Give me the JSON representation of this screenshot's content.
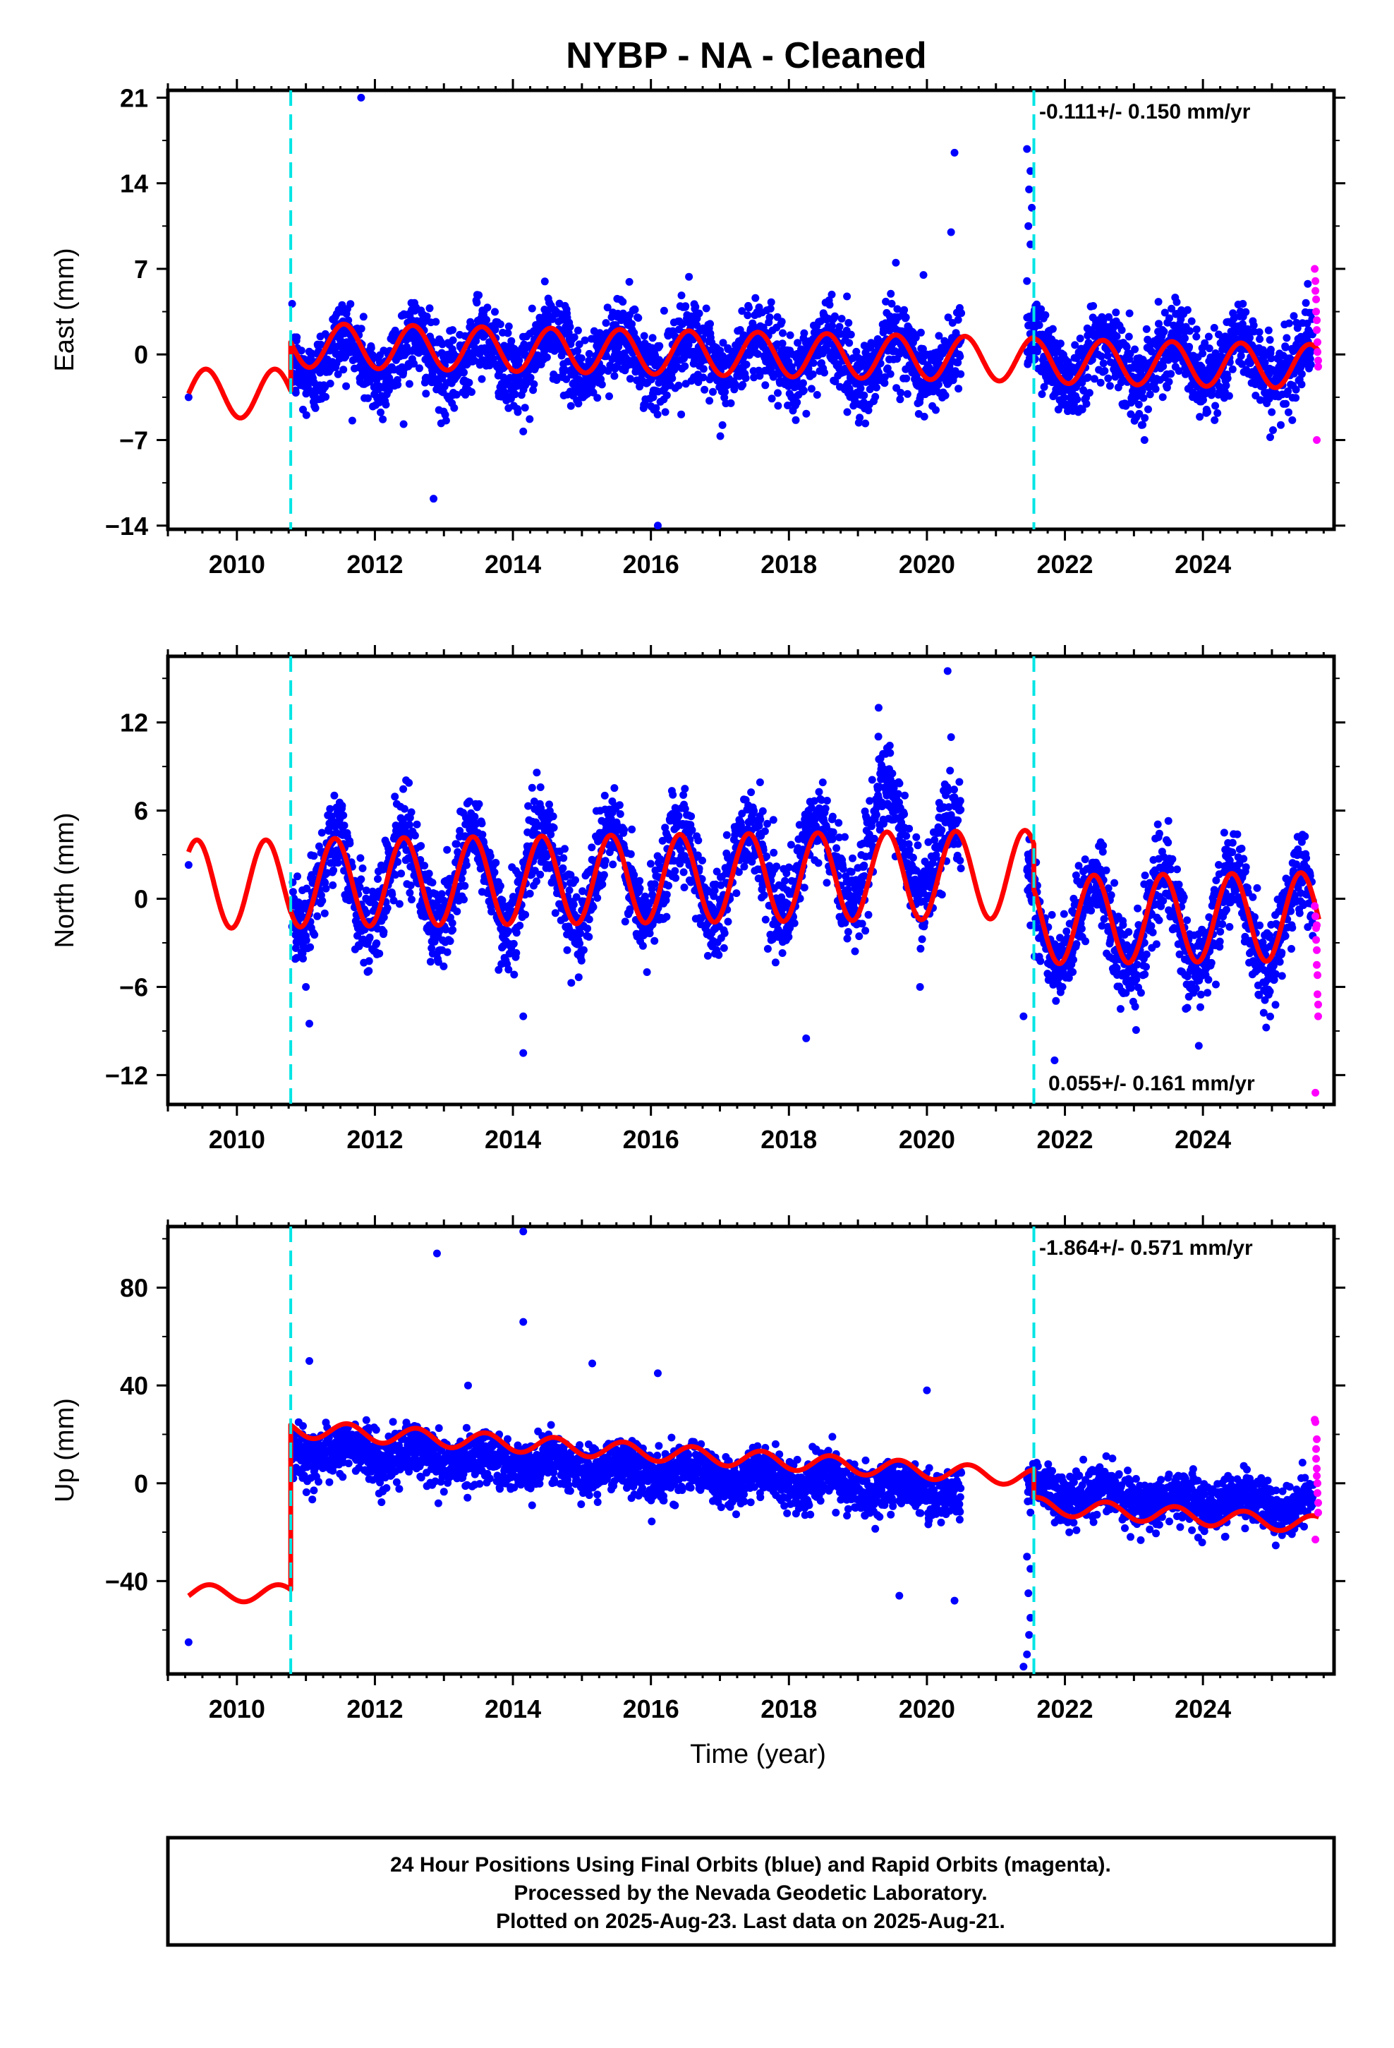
{
  "title": "NYBP  - NA - Cleaned",
  "colors": {
    "final": "#0000ff",
    "rapid": "#ff00ff",
    "model": "#ff0000",
    "break": "#00e5e5"
  },
  "footer": {
    "line1": "24 Hour Positions Using Final Orbits (blue) and Rapid Orbits (magenta).",
    "line2": "Processed by the Nevada Geodetic Laboratory.",
    "line3": "Plotted on 2025-Aug-23. Last data on 2025-Aug-21."
  },
  "chart_data": [
    {
      "type": "scatter",
      "ylabel": "East (mm)",
      "xlabel": "",
      "rate": "-0.111+/- 0.150 mm/yr",
      "rate_position": "top-right",
      "xlim": [
        2009.0,
        2025.9
      ],
      "ylim": [
        -14.3,
        21.6
      ],
      "xticks": [
        2010,
        2012,
        2014,
        2016,
        2018,
        2020,
        2022,
        2024
      ],
      "yticks": [
        -14,
        -7,
        0,
        7,
        14,
        21
      ],
      "breaks": [
        2010.78,
        2021.55
      ],
      "data_gaps": [
        [
          2009.4,
          2010.78
        ],
        [
          2020.5,
          2021.45
        ]
      ],
      "series": [
        {
          "name": "Final Orbits",
          "color": "#0000ff",
          "kind": "points",
          "band_center": [
            [
              2010.78,
              -0.3
            ],
            [
              2015.0,
              0.0
            ],
            [
              2020.5,
              -0.4
            ],
            [
              2021.6,
              -0.3
            ],
            [
              2025.6,
              -0.6
            ]
          ],
          "scatter_sd": 1.6,
          "annual_amp": 1.8,
          "annual_phase": 0.55,
          "outliers": [
            [
              2009.3,
              -3.5
            ],
            [
              2011.8,
              21.0
            ],
            [
              2012.85,
              -11.8
            ],
            [
              2014.15,
              -6.3
            ],
            [
              2016.1,
              -14.0
            ],
            [
              2019.55,
              7.5
            ],
            [
              2019.95,
              6.5
            ],
            [
              2020.4,
              16.5
            ],
            [
              2020.35,
              10.0
            ],
            [
              2021.45,
              16.8
            ],
            [
              2021.5,
              15.0
            ],
            [
              2021.48,
              13.5
            ],
            [
              2021.52,
              12.0
            ],
            [
              2021.47,
              10.5
            ],
            [
              2021.5,
              9.0
            ],
            [
              2021.45,
              6.0
            ]
          ]
        },
        {
          "name": "Rapid Orbits",
          "color": "#ff00ff",
          "kind": "points",
          "x": [
            2025.62,
            2025.63,
            2025.64,
            2025.64,
            2025.65,
            2025.65,
            2025.66,
            2025.66,
            2025.67,
            2025.67,
            2025.63,
            2025.65
          ],
          "y": [
            7.0,
            6.0,
            4.5,
            3.5,
            2.8,
            2.0,
            1.0,
            0.2,
            -0.5,
            -1.0,
            5.2,
            -7.0
          ]
        },
        {
          "name": "Model",
          "color": "#ff0000",
          "kind": "model",
          "segments": [
            {
              "x0": 2009.3,
              "x1": 2010.78,
              "offset": -3.2,
              "trend": 0.0,
              "amp": 2.0,
              "phase": 0.55
            },
            {
              "x0": 2010.78,
              "x1": 2021.55,
              "offset": 0.3,
              "trend": -0.111,
              "amp": 1.8,
              "phase": 0.55
            },
            {
              "x0": 2021.55,
              "x1": 2025.68,
              "offset": 0.2,
              "trend": -0.111,
              "amp": 1.8,
              "phase": 0.55
            }
          ]
        }
      ]
    },
    {
      "type": "scatter",
      "ylabel": "North (mm)",
      "xlabel": "",
      "rate": "0.055+/- 0.161 mm/yr",
      "rate_position": "bottom-right",
      "xlim": [
        2009.0,
        2025.9
      ],
      "ylim": [
        -14.0,
        16.5
      ],
      "xticks": [
        2010,
        2012,
        2014,
        2016,
        2018,
        2020,
        2022,
        2024
      ],
      "yticks": [
        -12,
        -6,
        0,
        6,
        12
      ],
      "breaks": [
        2010.78,
        2021.55
      ],
      "data_gaps": [
        [
          2009.4,
          2010.78
        ],
        [
          2020.5,
          2021.45
        ]
      ],
      "series": [
        {
          "name": "Final Orbits",
          "color": "#0000ff",
          "kind": "points",
          "band_center": [
            [
              2010.78,
              1.0
            ],
            [
              2015.0,
              1.5
            ],
            [
              2018.5,
              2.0
            ],
            [
              2019.4,
              4.5
            ],
            [
              2020.5,
              2.5
            ],
            [
              2021.6,
              -2.0
            ],
            [
              2025.6,
              -1.5
            ]
          ],
          "scatter_sd": 1.5,
          "annual_amp": 3.2,
          "annual_phase": 0.42,
          "outliers": [
            [
              2009.3,
              2.3
            ],
            [
              2011.0,
              -6.0
            ],
            [
              2011.05,
              -8.5
            ],
            [
              2014.15,
              -8.0
            ],
            [
              2014.15,
              -10.5
            ],
            [
              2018.25,
              -9.5
            ],
            [
              2019.3,
              13.0
            ],
            [
              2020.3,
              15.5
            ],
            [
              2020.35,
              11.0
            ],
            [
              2019.9,
              -6.0
            ],
            [
              2021.4,
              -8.0
            ],
            [
              2021.85,
              -11.0
            ]
          ]
        },
        {
          "name": "Rapid Orbits",
          "color": "#ff00ff",
          "kind": "points",
          "x": [
            2025.62,
            2025.63,
            2025.64,
            2025.64,
            2025.65,
            2025.65,
            2025.66,
            2025.66,
            2025.67,
            2025.67,
            2025.63,
            2025.65
          ],
          "y": [
            -0.5,
            -1.2,
            -2.0,
            -2.8,
            -3.5,
            -4.5,
            -5.2,
            -6.5,
            -7.2,
            -8.0,
            -13.2,
            -1.8
          ]
        },
        {
          "name": "Model",
          "color": "#ff0000",
          "kind": "model",
          "segments": [
            {
              "x0": 2009.3,
              "x1": 2010.78,
              "offset": 1.0,
              "trend": 0.0,
              "amp": 3.0,
              "phase": 0.42
            },
            {
              "x0": 2010.78,
              "x1": 2021.55,
              "offset": 1.3,
              "trend": 0.055,
              "amp": 3.0,
              "phase": 0.42
            },
            {
              "x0": 2021.55,
              "x1": 2025.68,
              "offset": -1.8,
              "trend": 0.055,
              "amp": 3.0,
              "phase": 0.42
            }
          ]
        }
      ]
    },
    {
      "type": "scatter",
      "ylabel": "Up (mm)",
      "xlabel": "Time (year)",
      "rate": "-1.864+/- 0.571 mm/yr",
      "rate_position": "top-right",
      "xlim": [
        2009.0,
        2025.9
      ],
      "ylim": [
        -78,
        105
      ],
      "xticks": [
        2010,
        2012,
        2014,
        2016,
        2018,
        2020,
        2022,
        2024
      ],
      "yticks": [
        -40,
        0,
        40,
        80
      ],
      "breaks": [
        2010.78,
        2021.55
      ],
      "data_gaps": [
        [
          2009.4,
          2010.78
        ],
        [
          2020.5,
          2021.45
        ]
      ],
      "series": [
        {
          "name": "Final Orbits",
          "color": "#0000ff",
          "kind": "points",
          "band_center": [
            [
              2010.78,
              14.0
            ],
            [
              2014.0,
              9.0
            ],
            [
              2017.0,
              3.0
            ],
            [
              2020.5,
              -4.0
            ],
            [
              2021.6,
              -3.0
            ],
            [
              2025.6,
              -10.0
            ]
          ],
          "scatter_sd": 5.0,
          "annual_amp": 3.0,
          "annual_phase": 0.6,
          "outliers": [
            [
              2009.3,
              -65.0
            ],
            [
              2011.05,
              50.0
            ],
            [
              2012.9,
              94.0
            ],
            [
              2013.35,
              40.0
            ],
            [
              2014.15,
              103.0
            ],
            [
              2014.15,
              66.0
            ],
            [
              2015.15,
              49.0
            ],
            [
              2016.1,
              45.0
            ],
            [
              2019.6,
              -46.0
            ],
            [
              2020.0,
              38.0
            ],
            [
              2020.4,
              -48.0
            ],
            [
              2021.4,
              -75.0
            ],
            [
              2021.45,
              -70.0
            ],
            [
              2021.48,
              -62.0
            ],
            [
              2021.5,
              -55.0
            ],
            [
              2021.47,
              -45.0
            ],
            [
              2021.5,
              -35.0
            ],
            [
              2021.45,
              -30.0
            ]
          ]
        },
        {
          "name": "Rapid Orbits",
          "color": "#ff00ff",
          "kind": "points",
          "x": [
            2025.62,
            2025.63,
            2025.64,
            2025.64,
            2025.65,
            2025.65,
            2025.66,
            2025.66,
            2025.67,
            2025.67,
            2025.63,
            2025.65
          ],
          "y": [
            26.0,
            25.0,
            14.0,
            10.0,
            6.0,
            3.0,
            0.0,
            -4.0,
            -8.0,
            -12.0,
            -23.0,
            18.0
          ]
        },
        {
          "name": "Model",
          "color": "#ff0000",
          "kind": "model",
          "segments": [
            {
              "x0": 2009.3,
              "x1": 2010.78,
              "offset": -45.0,
              "trend": 0.0,
              "amp": 3.5,
              "phase": 0.6
            },
            {
              "x0": 2010.78,
              "x1": 2021.55,
              "offset": 14.5,
              "trend": -1.864,
              "amp": 3.5,
              "phase": 0.6
            },
            {
              "x0": 2021.55,
              "x1": 2025.68,
              "offset": 3.0,
              "trend": -1.864,
              "amp": 3.5,
              "phase": 0.6
            }
          ]
        }
      ]
    }
  ]
}
